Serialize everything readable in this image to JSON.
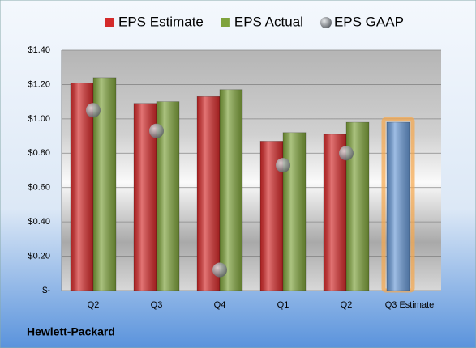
{
  "chart_data": {
    "type": "bar",
    "title": "Hewlett-Packard",
    "categories": [
      "Q2",
      "Q3",
      "Q4",
      "Q1",
      "Q2",
      "Q3 Estimate"
    ],
    "series": [
      {
        "name": "EPS Estimate",
        "color": "#d42a2a",
        "kind": "bar",
        "values": [
          1.21,
          1.09,
          1.13,
          0.87,
          0.91,
          0.98
        ],
        "point_colors": [
          null,
          null,
          null,
          null,
          null,
          "#6a9ad6"
        ]
      },
      {
        "name": "EPS Actual",
        "color": "#7fa33c",
        "kind": "bar",
        "values": [
          1.24,
          1.1,
          1.17,
          0.92,
          0.98,
          null
        ]
      },
      {
        "name": "EPS GAAP",
        "color": "#8a8f96",
        "kind": "dot",
        "values": [
          1.05,
          0.93,
          0.12,
          0.73,
          0.8,
          null
        ]
      }
    ],
    "ylim": [
      0,
      1.4
    ],
    "yticks": [
      {
        "value": 0,
        "label": "$-"
      },
      {
        "value": 0.2,
        "label": "$0.20"
      },
      {
        "value": 0.4,
        "label": "$0.40"
      },
      {
        "value": 0.6,
        "label": "$0.60"
      },
      {
        "value": 0.8,
        "label": "$0.80"
      },
      {
        "value": 1.0,
        "label": "$1.00"
      },
      {
        "value": 1.2,
        "label": "$1.20"
      },
      {
        "value": 1.4,
        "label": "$1.40"
      }
    ],
    "grid": true,
    "legend": "top"
  }
}
